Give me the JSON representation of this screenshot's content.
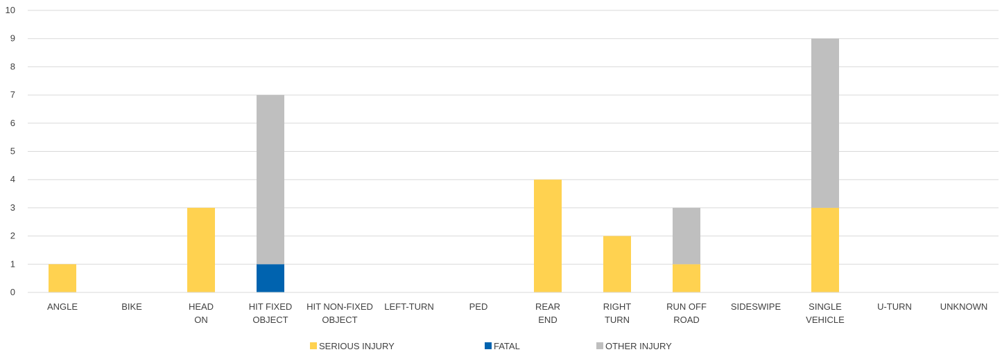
{
  "chart_data": {
    "type": "bar",
    "stacked": true,
    "categories": [
      [
        "ANGLE"
      ],
      [
        "BIKE"
      ],
      [
        "HEAD",
        "ON"
      ],
      [
        "HIT FIXED",
        "OBJECT"
      ],
      [
        "HIT NON-FIXED",
        "OBJECT"
      ],
      [
        "LEFT-TURN"
      ],
      [
        "PED"
      ],
      [
        "REAR",
        "END"
      ],
      [
        "RIGHT",
        "TURN"
      ],
      [
        "RUN OFF",
        "ROAD"
      ],
      [
        "SIDESWIPE"
      ],
      [
        "SINGLE",
        "VEHICLE"
      ],
      [
        "U-TURN"
      ],
      [
        "UNKNOWN"
      ]
    ],
    "series": [
      {
        "name": "SERIOUS INJURY",
        "color": "#FFD250",
        "values": [
          1,
          0,
          3,
          0,
          0,
          0,
          0,
          4,
          2,
          1,
          0,
          3,
          0,
          0
        ]
      },
      {
        "name": "FATAL",
        "color": "#0063AF",
        "values": [
          0,
          0,
          0,
          1,
          0,
          0,
          0,
          0,
          0,
          0,
          0,
          0,
          0,
          0
        ]
      },
      {
        "name": "OTHER INJURY",
        "color": "#BFBFBF",
        "values": [
          0,
          0,
          0,
          6,
          0,
          0,
          0,
          0,
          0,
          2,
          0,
          6,
          0,
          0
        ]
      }
    ],
    "ylim": [
      0,
      10
    ],
    "yticks": [
      0,
      1,
      2,
      3,
      4,
      5,
      6,
      7,
      8,
      9,
      10
    ],
    "grid": true,
    "legend_position": "bottom"
  }
}
